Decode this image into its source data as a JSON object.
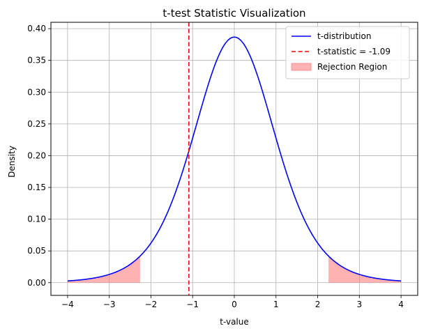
{
  "chart_data": {
    "type": "line",
    "title": "t-test Statistic Visualization",
    "xlabel": "t-value",
    "ylabel": "Density",
    "xlim": [
      -4.4,
      4.4
    ],
    "ylim": [
      -0.02,
      0.41
    ],
    "x_ticks": [
      -4,
      -3,
      -2,
      -1,
      0,
      1,
      2,
      3,
      4
    ],
    "x_tick_labels": [
      "−4",
      "−3",
      "−2",
      "−1",
      "0",
      "1",
      "2",
      "3",
      "4"
    ],
    "y_ticks": [
      0.0,
      0.05,
      0.1,
      0.15,
      0.2,
      0.25,
      0.3,
      0.35,
      0.4
    ],
    "y_tick_labels": [
      "0.00",
      "0.05",
      "0.10",
      "0.15",
      "0.20",
      "0.25",
      "0.30",
      "0.35",
      "0.40"
    ],
    "grid": true,
    "legend_position": "top-right",
    "distribution": {
      "name": "t-distribution",
      "x_range": [
        -4,
        4
      ],
      "degrees_of_freedom": 8,
      "color": "#0000ff"
    },
    "t_statistic": {
      "name": "t-statistic = -1.09",
      "value": -1.09,
      "color": "#ff0000"
    },
    "rejection_region": {
      "name": "Rejection Region",
      "critical_value": 2.26,
      "color": "#ff7f7f"
    }
  }
}
